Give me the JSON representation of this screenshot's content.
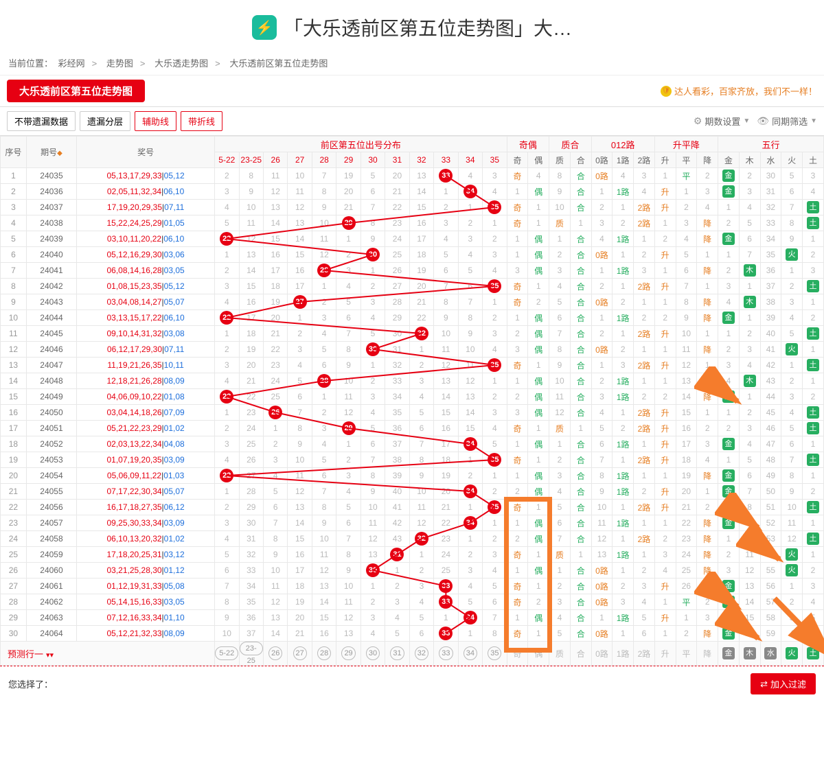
{
  "header": {
    "title": "「大乐透前区第五位走势图」大…"
  },
  "breadcrumb": {
    "label": "当前位置：",
    "items": [
      "彩经网",
      "走势图",
      "大乐透走势图",
      "大乐透前区第五位走势图"
    ]
  },
  "title_tab": "大乐透前区第五位走势图",
  "slogan": "达人看彩，百家齐放，我们不一样！",
  "toolbar": {
    "b1": "不带遗漏数据",
    "b2": "遗漏分层",
    "b3": "辅助线",
    "b4": "带折线",
    "dd1": "期数设置",
    "dd2": "同期筛选"
  },
  "columns": {
    "seq": "序号",
    "period": "期号",
    "nums": "奖号",
    "dist_group": "前区第五位出号分布",
    "dist": [
      "5-22",
      "23-25",
      "26",
      "27",
      "28",
      "29",
      "30",
      "31",
      "32",
      "33",
      "34",
      "35"
    ],
    "oe_group": "奇偶",
    "oe": [
      "奇",
      "偶"
    ],
    "zh_group": "质合",
    "zh": [
      "质",
      "合"
    ],
    "lu_group": "012路",
    "lu": [
      "0路",
      "1路",
      "2路"
    ],
    "spj_group": "升平降",
    "spj": [
      "升",
      "平",
      "降"
    ],
    "wx_group": "五行",
    "wx": [
      "金",
      "木",
      "水",
      "火",
      "土"
    ]
  },
  "dist_vals": [
    5,
    23,
    26,
    27,
    28,
    29,
    30,
    31,
    32,
    33,
    34,
    35
  ],
  "wx_names": [
    "金",
    "木",
    "水",
    "火",
    "土"
  ],
  "rows": [
    {
      "seq": 1,
      "period": "24035",
      "red": "05,13,17,29,33",
      "blue": "05,12",
      "hit": 33,
      "dist": [
        2,
        8,
        11,
        10,
        7,
        19,
        5,
        20,
        13,
        "",
        4,
        3
      ],
      "oe": "奇",
      "oem": 4,
      "zh": "合",
      "zhm": 8,
      "lu": "0路",
      "lum": [
        null,
        4,
        3
      ],
      "spj": "平",
      "spjm": [
        1,
        null,
        2
      ],
      "wx": "金",
      "wxm": [
        null,
        2,
        30,
        5,
        3
      ]
    },
    {
      "seq": 2,
      "period": "24036",
      "red": "02,05,11,32,34",
      "blue": "06,10",
      "hit": 34,
      "dist": [
        3,
        9,
        12,
        11,
        8,
        20,
        6,
        21,
        14,
        1,
        "",
        4
      ],
      "oe": "偶",
      "oem": 1,
      "zh": "合",
      "zhm": 9,
      "lu": "1路",
      "lum": [
        1,
        null,
        4
      ],
      "spj": "升",
      "spjm": [
        null,
        1,
        3
      ],
      "wx": "金",
      "wxm": [
        null,
        3,
        31,
        6,
        4
      ]
    },
    {
      "seq": 3,
      "period": "24037",
      "red": "17,19,20,29,35",
      "blue": "07,11",
      "hit": 35,
      "dist": [
        4,
        10,
        13,
        12,
        9,
        21,
        7,
        22,
        15,
        2,
        1,
        ""
      ],
      "oe": "奇",
      "oem": 1,
      "zh": "合",
      "zhm": 10,
      "lu": "2路",
      "lum": [
        2,
        1,
        null
      ],
      "spj": "升",
      "spjm": [
        null,
        2,
        4
      ],
      "wx": "土",
      "wxm": [
        1,
        4,
        32,
        7,
        null
      ]
    },
    {
      "seq": 4,
      "period": "24038",
      "red": "15,22,24,25,29",
      "blue": "01,05",
      "hit": 29,
      "dist": [
        5,
        11,
        14,
        13,
        10,
        "",
        8,
        23,
        16,
        3,
        2,
        1
      ],
      "oe": "奇",
      "oem": 1,
      "zh": "质",
      "zhm": 1,
      "lu": "2路",
      "lum": [
        3,
        2,
        null
      ],
      "spj": "降",
      "spjm": [
        1,
        3,
        null
      ],
      "wx": "土",
      "wxm": [
        2,
        5,
        33,
        8,
        null
      ]
    },
    {
      "seq": 5,
      "period": "24039",
      "red": "03,10,11,20,22",
      "blue": "06,10",
      "hit": 22,
      "dist": [
        "",
        12,
        15,
        14,
        11,
        1,
        9,
        24,
        17,
        4,
        3,
        2
      ],
      "oe": "偶",
      "oem": 1,
      "zh": "合",
      "zhm": 1,
      "lu": "1路",
      "lum": [
        4,
        null,
        1
      ],
      "spj": "降",
      "spjm": [
        2,
        4,
        null
      ],
      "wx": "金",
      "wxm": [
        null,
        6,
        34,
        9,
        1
      ]
    },
    {
      "seq": 6,
      "period": "24040",
      "red": "05,12,16,29,30",
      "blue": "03,06",
      "hit": 30,
      "dist": [
        1,
        13,
        16,
        15,
        12,
        2,
        "",
        25,
        18,
        5,
        4,
        3
      ],
      "oe": "偶",
      "oem": 1,
      "zh": "合",
      "zhm": 2,
      "lu": "0路",
      "lum": [
        null,
        1,
        2
      ],
      "spj": "升",
      "spjm": [
        null,
        5,
        1
      ],
      "wx": "火",
      "wxm": [
        1,
        7,
        35,
        null,
        2
      ]
    },
    {
      "seq": 7,
      "period": "24041",
      "red": "06,08,14,16,28",
      "blue": "03,05",
      "hit": 28,
      "dist": [
        2,
        14,
        17,
        16,
        "",
        3,
        1,
        26,
        19,
        6,
        5,
        4
      ],
      "oe": "偶",
      "oem": 3,
      "zh": "合",
      "zhm": 3,
      "lu": "1路",
      "lum": [
        1,
        null,
        3
      ],
      "spj": "降",
      "spjm": [
        1,
        6,
        null
      ],
      "wx": "木",
      "wxm": [
        2,
        null,
        36,
        1,
        3
      ]
    },
    {
      "seq": 8,
      "period": "24042",
      "red": "01,08,15,23,35",
      "blue": "05,12",
      "hit": 35,
      "dist": [
        3,
        15,
        18,
        17,
        1,
        4,
        2,
        27,
        20,
        7,
        6,
        ""
      ],
      "oe": "奇",
      "oem": 1,
      "zh": "合",
      "zhm": 4,
      "lu": "2路",
      "lum": [
        2,
        1,
        null
      ],
      "spj": "升",
      "spjm": [
        null,
        7,
        1
      ],
      "wx": "土",
      "wxm": [
        3,
        1,
        37,
        2,
        null
      ]
    },
    {
      "seq": 9,
      "period": "24043",
      "red": "03,04,08,14,27",
      "blue": "05,07",
      "hit": 27,
      "dist": [
        4,
        16,
        19,
        "",
        2,
        5,
        3,
        28,
        21,
        8,
        7,
        1
      ],
      "oe": "奇",
      "oem": 2,
      "zh": "合",
      "zhm": 5,
      "lu": "0路",
      "lum": [
        null,
        2,
        1
      ],
      "spj": "降",
      "spjm": [
        1,
        8,
        null
      ],
      "wx": "木",
      "wxm": [
        4,
        null,
        38,
        3,
        1
      ]
    },
    {
      "seq": 10,
      "period": "24044",
      "red": "03,13,15,17,22",
      "blue": "06,10",
      "hit": 22,
      "dist": [
        "",
        17,
        20,
        1,
        3,
        6,
        4,
        29,
        22,
        9,
        8,
        2
      ],
      "oe": "偶",
      "oem": 1,
      "zh": "合",
      "zhm": 6,
      "lu": "1路",
      "lum": [
        1,
        null,
        2
      ],
      "spj": "降",
      "spjm": [
        2,
        9,
        null
      ],
      "wx": "金",
      "wxm": [
        null,
        1,
        39,
        4,
        2
      ]
    },
    {
      "seq": 11,
      "period": "24045",
      "red": "09,10,14,31,32",
      "blue": "03,08",
      "hit": 32,
      "dist": [
        1,
        18,
        21,
        2,
        4,
        7,
        5,
        30,
        "",
        10,
        9,
        3
      ],
      "oe": "偶",
      "oem": 2,
      "zh": "合",
      "zhm": 7,
      "lu": "2路",
      "lum": [
        2,
        1,
        null
      ],
      "spj": "升",
      "spjm": [
        null,
        10,
        1
      ],
      "wx": "土",
      "wxm": [
        1,
        2,
        40,
        5,
        null
      ]
    },
    {
      "seq": 12,
      "period": "24046",
      "red": "06,12,17,29,30",
      "blue": "07,11",
      "hit": 30,
      "dist": [
        2,
        19,
        22,
        3,
        5,
        8,
        "",
        31,
        1,
        11,
        10,
        4
      ],
      "oe": "偶",
      "oem": 3,
      "zh": "合",
      "zhm": 8,
      "lu": "0路",
      "lum": [
        null,
        2,
        1
      ],
      "spj": "降",
      "spjm": [
        1,
        11,
        null
      ],
      "wx": "火",
      "wxm": [
        2,
        3,
        41,
        null,
        1
      ]
    },
    {
      "seq": 13,
      "period": "24047",
      "red": "11,19,21,26,35",
      "blue": "10,11",
      "hit": 35,
      "dist": [
        3,
        20,
        23,
        4,
        6,
        9,
        1,
        32,
        2,
        12,
        11,
        ""
      ],
      "oe": "奇",
      "oem": 1,
      "zh": "合",
      "zhm": 9,
      "lu": "2路",
      "lum": [
        1,
        3,
        null
      ],
      "spj": "升",
      "spjm": [
        null,
        12,
        1
      ],
      "wx": "土",
      "wxm": [
        3,
        4,
        42,
        1,
        null
      ]
    },
    {
      "seq": 14,
      "period": "24048",
      "red": "12,18,21,26,28",
      "blue": "08,09",
      "hit": 28,
      "dist": [
        4,
        21,
        24,
        5,
        "",
        10,
        2,
        33,
        3,
        13,
        12,
        1
      ],
      "oe": "偶",
      "oem": 1,
      "zh": "合",
      "zhm": 10,
      "lu": "1路",
      "lum": [
        2,
        null,
        1
      ],
      "spj": "降",
      "spjm": [
        1,
        13,
        null
      ],
      "wx": "木",
      "wxm": [
        4,
        null,
        43,
        2,
        1
      ]
    },
    {
      "seq": 15,
      "period": "24049",
      "red": "04,06,09,10,22",
      "blue": "01,08",
      "hit": 22,
      "dist": [
        "",
        22,
        25,
        6,
        1,
        11,
        3,
        34,
        4,
        14,
        13,
        2
      ],
      "oe": "偶",
      "oem": 2,
      "zh": "合",
      "zhm": 11,
      "lu": "1路",
      "lum": [
        3,
        null,
        2
      ],
      "spj": "降",
      "spjm": [
        2,
        14,
        null
      ],
      "wx": "金",
      "wxm": [
        null,
        1,
        44,
        3,
        2
      ]
    },
    {
      "seq": 16,
      "period": "24050",
      "red": "03,04,14,18,26",
      "blue": "07,09",
      "hit": 26,
      "dist": [
        1,
        23,
        "",
        7,
        2,
        12,
        4,
        35,
        5,
        15,
        14,
        3
      ],
      "oe": "偶",
      "oem": 3,
      "zh": "合",
      "zhm": 12,
      "lu": "2路",
      "lum": [
        4,
        1,
        null
      ],
      "spj": "升",
      "spjm": [
        null,
        15,
        1
      ],
      "wx": "土",
      "wxm": [
        1,
        2,
        45,
        4,
        null
      ]
    },
    {
      "seq": 17,
      "period": "24051",
      "red": "05,21,22,23,29",
      "blue": "01,02",
      "hit": 29,
      "dist": [
        2,
        24,
        1,
        8,
        3,
        "",
        5,
        36,
        6,
        16,
        15,
        4
      ],
      "oe": "奇",
      "oem": 1,
      "zh": "质",
      "zhm": 1,
      "lu": "2路",
      "lum": [
        5,
        2,
        null
      ],
      "spj": "升",
      "spjm": [
        null,
        16,
        2
      ],
      "wx": "土",
      "wxm": [
        2,
        3,
        46,
        5,
        null
      ]
    },
    {
      "seq": 18,
      "period": "24052",
      "red": "02,03,13,22,34",
      "blue": "04,08",
      "hit": 34,
      "dist": [
        3,
        25,
        2,
        9,
        4,
        1,
        6,
        37,
        7,
        17,
        "",
        5
      ],
      "oe": "偶",
      "oem": 1,
      "zh": "合",
      "zhm": 1,
      "lu": "1路",
      "lum": [
        6,
        null,
        1
      ],
      "spj": "升",
      "spjm": [
        null,
        17,
        3
      ],
      "wx": "金",
      "wxm": [
        null,
        4,
        47,
        6,
        1
      ]
    },
    {
      "seq": 19,
      "period": "24053",
      "red": "01,07,19,20,35",
      "blue": "03,09",
      "hit": 35,
      "dist": [
        4,
        26,
        3,
        10,
        5,
        2,
        7,
        38,
        8,
        18,
        1,
        ""
      ],
      "oe": "奇",
      "oem": 1,
      "zh": "合",
      "zhm": 2,
      "lu": "2路",
      "lum": [
        7,
        1,
        null
      ],
      "spj": "升",
      "spjm": [
        null,
        18,
        4
      ],
      "wx": "土",
      "wxm": [
        1,
        5,
        48,
        7,
        null
      ]
    },
    {
      "seq": 20,
      "period": "24054",
      "red": "05,06,09,11,22",
      "blue": "01,03",
      "hit": 22,
      "dist": [
        "",
        27,
        4,
        11,
        6,
        3,
        8,
        39,
        9,
        19,
        2,
        1
      ],
      "oe": "偶",
      "oem": 1,
      "zh": "合",
      "zhm": 3,
      "lu": "1路",
      "lum": [
        8,
        null,
        1
      ],
      "spj": "降",
      "spjm": [
        1,
        19,
        null
      ],
      "wx": "金",
      "wxm": [
        null,
        6,
        49,
        8,
        1
      ]
    },
    {
      "seq": 21,
      "period": "24055",
      "red": "07,17,22,30,34",
      "blue": "05,07",
      "hit": 34,
      "dist": [
        1,
        28,
        5,
        12,
        7,
        4,
        9,
        40,
        10,
        20,
        "",
        2
      ],
      "oe": "偶",
      "oem": 2,
      "zh": "合",
      "zhm": 4,
      "lu": "1路",
      "lum": [
        9,
        null,
        2
      ],
      "spj": "升",
      "spjm": [
        null,
        20,
        1
      ],
      "wx": "金",
      "wxm": [
        null,
        7,
        50,
        9,
        2
      ]
    },
    {
      "seq": 22,
      "period": "24056",
      "red": "16,17,18,27,35",
      "blue": "06,12",
      "hit": 35,
      "dist": [
        2,
        29,
        6,
        13,
        8,
        5,
        10,
        41,
        11,
        21,
        1,
        ""
      ],
      "oe": "奇",
      "oem": 1,
      "zh": "合",
      "zhm": 5,
      "lu": "2路",
      "lum": [
        10,
        1,
        null
      ],
      "spj": "升",
      "spjm": [
        null,
        21,
        2
      ],
      "wx": "土",
      "wxm": [
        1,
        8,
        51,
        10,
        null
      ]
    },
    {
      "seq": 23,
      "period": "24057",
      "red": "09,25,30,33,34",
      "blue": "03,09",
      "hit": 34,
      "dist": [
        3,
        30,
        7,
        14,
        9,
        6,
        11,
        42,
        12,
        22,
        "",
        1
      ],
      "oe": "偶",
      "oem": 1,
      "zh": "合",
      "zhm": 6,
      "lu": "1路",
      "lum": [
        11,
        null,
        1
      ],
      "spj": "降",
      "spjm": [
        1,
        22,
        null
      ],
      "wx": "金",
      "wxm": [
        null,
        9,
        52,
        11,
        1
      ]
    },
    {
      "seq": 24,
      "period": "24058",
      "red": "06,10,13,20,32",
      "blue": "01,02",
      "hit": 32,
      "dist": [
        4,
        31,
        8,
        15,
        10,
        7,
        12,
        43,
        "",
        23,
        1,
        2
      ],
      "oe": "偶",
      "oem": 2,
      "zh": "合",
      "zhm": 7,
      "lu": "2路",
      "lum": [
        12,
        1,
        null
      ],
      "spj": "降",
      "spjm": [
        2,
        23,
        null
      ],
      "wx": "土",
      "wxm": [
        1,
        10,
        53,
        12,
        null
      ]
    },
    {
      "seq": 25,
      "period": "24059",
      "red": "17,18,20,25,31",
      "blue": "03,12",
      "hit": 31,
      "dist": [
        5,
        32,
        9,
        16,
        11,
        8,
        13,
        "",
        1,
        24,
        2,
        3
      ],
      "oe": "奇",
      "oem": 1,
      "zh": "质",
      "zhm": 1,
      "lu": "1路",
      "lum": [
        13,
        null,
        1
      ],
      "spj": "降",
      "spjm": [
        3,
        24,
        null
      ],
      "wx": "火",
      "wxm": [
        2,
        11,
        54,
        null,
        1
      ]
    },
    {
      "seq": 26,
      "period": "24060",
      "red": "03,21,25,28,30",
      "blue": "01,12",
      "hit": 30,
      "dist": [
        6,
        33,
        10,
        17,
        12,
        9,
        "",
        1,
        2,
        25,
        3,
        4
      ],
      "oe": "偶",
      "oem": 1,
      "zh": "合",
      "zhm": 1,
      "lu": "0路",
      "lum": [
        null,
        1,
        2
      ],
      "spj": "降",
      "spjm": [
        4,
        25,
        null
      ],
      "wx": "火",
      "wxm": [
        3,
        12,
        55,
        null,
        2
      ]
    },
    {
      "seq": 27,
      "period": "24061",
      "red": "01,12,19,31,33",
      "blue": "05,08",
      "hit": 33,
      "dist": [
        7,
        34,
        11,
        18,
        13,
        10,
        1,
        2,
        3,
        "",
        4,
        5
      ],
      "oe": "奇",
      "oem": 1,
      "zh": "合",
      "zhm": 2,
      "lu": "0路",
      "lum": [
        null,
        2,
        3
      ],
      "spj": "升",
      "spjm": [
        null,
        26,
        1
      ],
      "wx": "金",
      "wxm": [
        null,
        13,
        56,
        1,
        3
      ]
    },
    {
      "seq": 28,
      "period": "24062",
      "red": "05,14,15,16,33",
      "blue": "03,05",
      "hit": 33,
      "dist": [
        8,
        35,
        12,
        19,
        14,
        11,
        2,
        3,
        4,
        "",
        5,
        6
      ],
      "oe": "奇",
      "oem": 2,
      "zh": "合",
      "zhm": 3,
      "lu": "0路",
      "lum": [
        null,
        3,
        4
      ],
      "spj": "平",
      "spjm": [
        1,
        null,
        2
      ],
      "wx": "金",
      "wxm": [
        null,
        14,
        57,
        2,
        4
      ]
    },
    {
      "seq": 29,
      "period": "24063",
      "red": "07,12,16,33,34",
      "blue": "01,10",
      "hit": 34,
      "dist": [
        9,
        36,
        13,
        20,
        15,
        12,
        3,
        4,
        5,
        1,
        "",
        7
      ],
      "oe": "偶",
      "oem": 1,
      "zh": "合",
      "zhm": 4,
      "lu": "1路",
      "lum": [
        1,
        null,
        5
      ],
      "spj": "升",
      "spjm": [
        null,
        1,
        3
      ],
      "wx": "金",
      "wxm": [
        null,
        15,
        58,
        3,
        5
      ]
    },
    {
      "seq": 30,
      "period": "24064",
      "red": "05,12,21,32,33",
      "blue": "08,09",
      "hit": 33,
      "dist": [
        10,
        37,
        14,
        21,
        16,
        13,
        4,
        5,
        6,
        "",
        1,
        8
      ],
      "oe": "奇",
      "oem": 1,
      "zh": "合",
      "zhm": 5,
      "lu": "0路",
      "lum": [
        null,
        1,
        6
      ],
      "spj": "降",
      "spjm": [
        1,
        2,
        null
      ],
      "wx": "金",
      "wxm": [
        null,
        16,
        59,
        4,
        6
      ]
    }
  ],
  "pred_label": "预测行一",
  "footer": {
    "label": "您选择了：",
    "btn": "加入过滤"
  },
  "colors": {
    "red": "#e60012",
    "blue": "#1e6fdb",
    "orange": "#e67e22",
    "green": "#27ae60",
    "miss": "#bbbbbb",
    "border": "#e8e8e8",
    "highlight": "#f57c2c"
  }
}
